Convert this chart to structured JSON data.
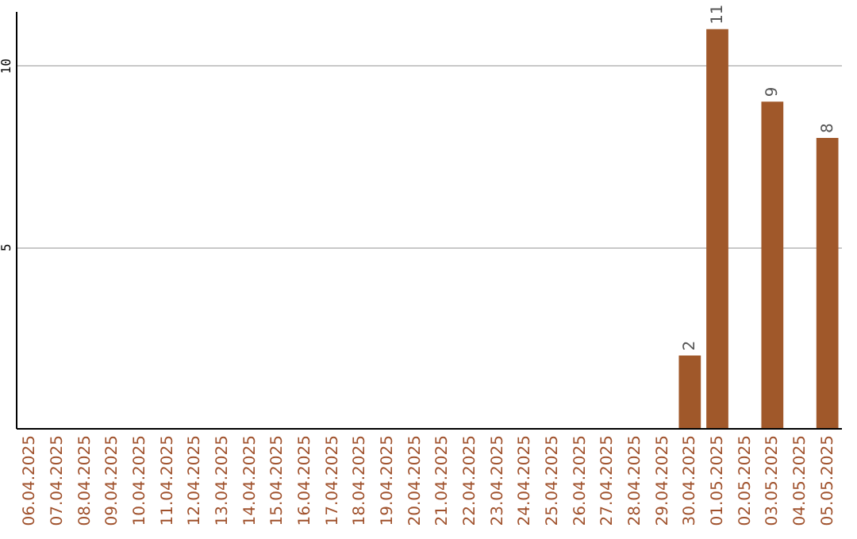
{
  "chart_data": {
    "type": "bar",
    "categories": [
      "06.04.2025",
      "07.04.2025",
      "08.04.2025",
      "09.04.2025",
      "10.04.2025",
      "11.04.2025",
      "12.04.2025",
      "13.04.2025",
      "14.04.2025",
      "15.04.2025",
      "16.04.2025",
      "17.04.2025",
      "18.04.2025",
      "19.04.2025",
      "20.04.2025",
      "21.04.2025",
      "22.04.2025",
      "23.04.2025",
      "24.04.2025",
      "25.04.2025",
      "26.04.2025",
      "27.04.2025",
      "28.04.2025",
      "29.04.2025",
      "30.04.2025",
      "01.05.2025",
      "02.05.2025",
      "03.05.2025",
      "04.05.2025",
      "05.05.2025"
    ],
    "values": [
      null,
      null,
      null,
      null,
      null,
      null,
      null,
      null,
      null,
      null,
      null,
      null,
      null,
      null,
      null,
      null,
      null,
      null,
      null,
      null,
      null,
      null,
      null,
      null,
      2,
      11,
      null,
      9,
      null,
      8
    ],
    "color": "#a0582a",
    "ylim": [
      0,
      11.5
    ],
    "yticks": [
      5,
      10
    ],
    "grid": "y",
    "data_labels": true
  }
}
